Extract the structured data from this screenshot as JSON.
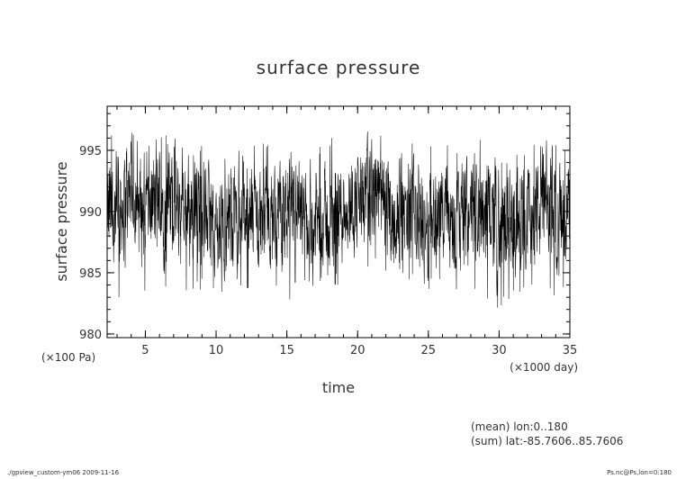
{
  "chart_data": {
    "type": "line",
    "title": "surface pressure",
    "xlabel": "time",
    "ylabel": "surface pressure",
    "x_unit_label": "(×1000 day)",
    "y_unit_label": "(×100 Pa)",
    "xlim": [
      2.3,
      35
    ],
    "ylim": [
      979.7,
      998.6
    ],
    "x_ticks": [
      5,
      10,
      15,
      20,
      25,
      30,
      35
    ],
    "y_ticks": [
      980,
      985,
      990,
      995
    ],
    "x_minor_step": 1,
    "y_minor_step": 1,
    "grid": false,
    "legend": "none",
    "line_color": "#000000",
    "series": [
      {
        "values_note": "dense noisy time series, approx. 2000 samples",
        "x": [
          2.3,
          3,
          4,
          5,
          6,
          7,
          8,
          9,
          10,
          11,
          12,
          13,
          14,
          15,
          15.7,
          16,
          17,
          18,
          18.6,
          19,
          20,
          21,
          22,
          23,
          24,
          25,
          26,
          27,
          28,
          29,
          30,
          31,
          32,
          33,
          34,
          35
        ],
        "values": [
          989.5,
          990.0,
          991.5,
          990.0,
          991.0,
          990.5,
          990.0,
          990.5,
          988.5,
          989.5,
          990.0,
          989.0,
          989.5,
          989.5,
          989.0,
          989.0,
          989.0,
          989.0,
          989.5,
          990.5,
          991.0,
          991.5,
          990.5,
          989.0,
          990.0,
          989.0,
          990.0,
          989.0,
          990.0,
          990.5,
          989.5,
          988.5,
          990.0,
          990.5,
          989.5,
          990.0
        ],
        "band_high": [
          997.0,
          995.5,
          996.5,
          995.0,
          996.5,
          996.0,
          996.0,
          995.5,
          995.0,
          995.0,
          995.0,
          996.0,
          995.5,
          995.5,
          995.0,
          995.5,
          995.5,
          995.5,
          998.0,
          996.0,
          996.0,
          997.0,
          996.5,
          995.0,
          996.0,
          995.5,
          996.0,
          995.5,
          996.5,
          996.0,
          996.5,
          995.0,
          995.5,
          996.0,
          995.5,
          995.5
        ],
        "band_low": [
          984.5,
          982.5,
          984.0,
          983.5,
          984.0,
          983.5,
          983.5,
          983.5,
          983.0,
          983.5,
          983.5,
          983.5,
          984.0,
          983.5,
          980.5,
          983.5,
          984.0,
          984.0,
          984.0,
          985.0,
          985.0,
          985.5,
          985.0,
          984.0,
          984.5,
          983.5,
          984.0,
          983.5,
          983.5,
          983.0,
          982.0,
          983.0,
          983.5,
          983.0,
          983.0,
          983.5
        ]
      }
    ]
  },
  "footer": {
    "mean_note": "(mean) lon:0..180",
    "sum_note": "(sum) lat:-85.7606..85.7606",
    "left_note": "./gpview_custom-ym06  2009-11-16",
    "right_note": "Ps.nc@Ps,lon=0:180"
  }
}
